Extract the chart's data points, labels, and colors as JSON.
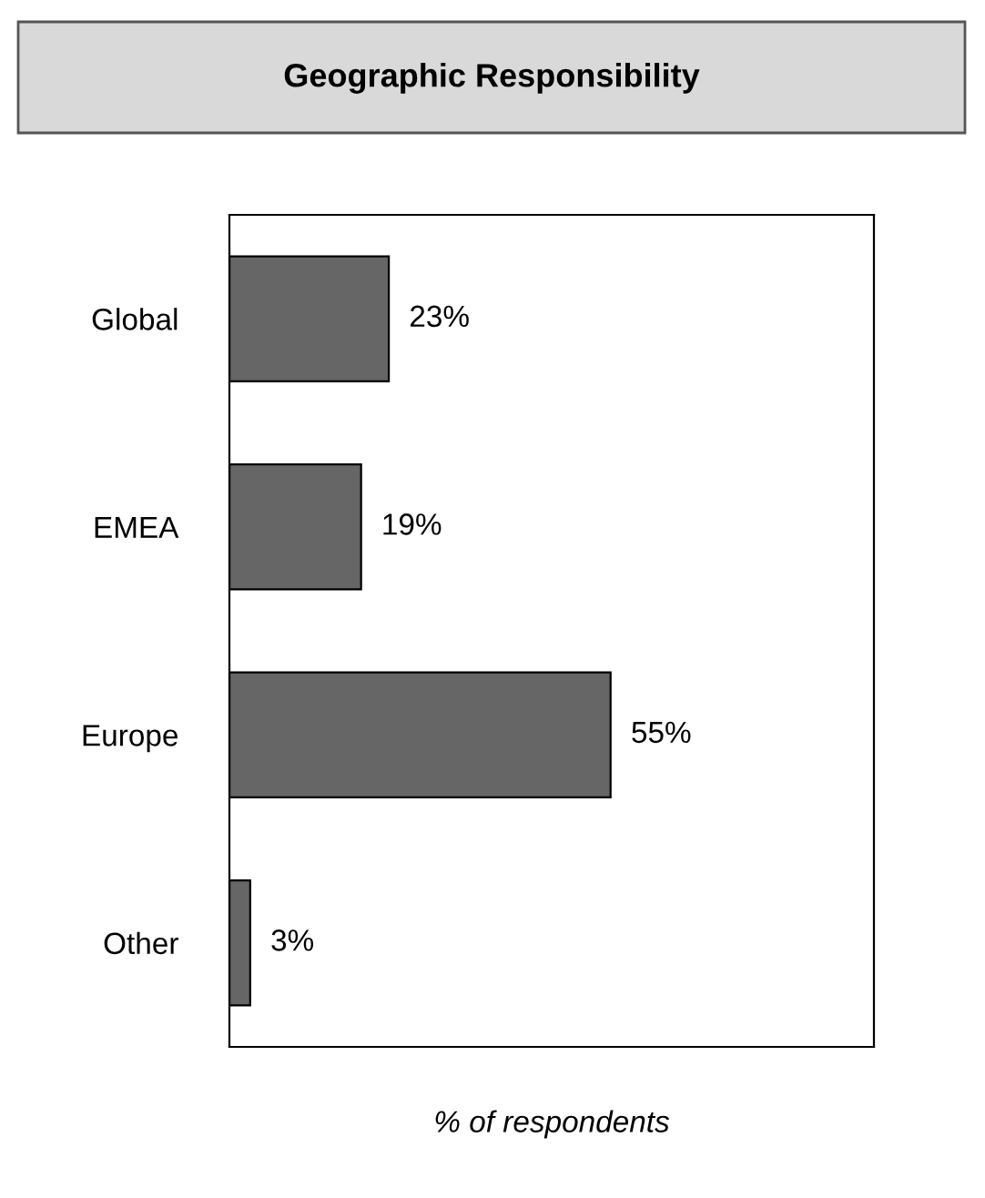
{
  "chart_data": {
    "type": "bar",
    "orientation": "horizontal",
    "title": "Geographic Responsibility",
    "xlabel": "% of respondents",
    "categories": [
      "Global",
      "EMEA",
      "Europe",
      "Other"
    ],
    "values": [
      23,
      19,
      55,
      3
    ],
    "value_labels": [
      "23%",
      "19%",
      "55%",
      "3%"
    ],
    "color": "#666666",
    "xlim": [
      0,
      93
    ],
    "tick_labels": "y",
    "grid": false,
    "legend": false
  }
}
